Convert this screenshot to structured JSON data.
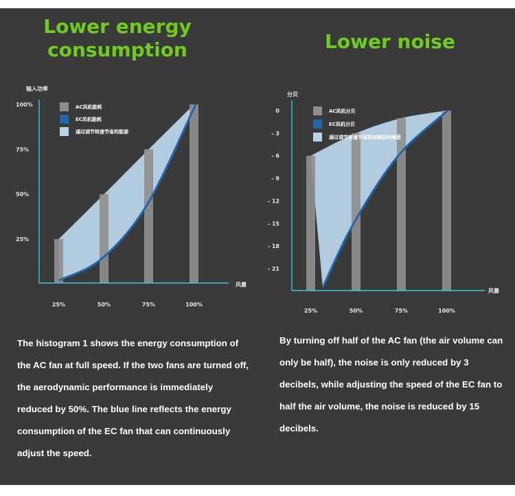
{
  "colors": {
    "background": "#3a3a3a",
    "title": "#6fcc1f",
    "axis": "#3ec9d6",
    "ac_bar": "#8f8f8f",
    "ec_line": "#2465a8",
    "saved_area": "#b9d3e7",
    "text": "#ffffff"
  },
  "left": {
    "title_line1": "Lower energy",
    "title_line2": "consumption",
    "description": "The histogram 1 shows the energy consumption of the AC fan at full speed. If the two fans are turned off, the aerodynamic performance is immediately reduced by 50%. The blue line reflects the energy consumption of the EC fan that can continuously adjust the speed."
  },
  "right": {
    "title": "Lower noise",
    "description": "By turning off half of the AC fan (the air volume can only be half), the noise is only reduced by 3 decibels, while adjusting the speed of the EC fan to half the air volume, the noise is reduced by 15 decibels."
  },
  "chart_data": [
    {
      "type": "bar",
      "title": "Lower energy consumption",
      "ylabel": "输入功率",
      "xlabel": "风量",
      "categories": [
        "25%",
        "50%",
        "75%",
        "100%"
      ],
      "y_tick_labels": [
        "100%",
        "75%",
        "50%",
        "25%"
      ],
      "y_ticks": [
        100,
        75,
        50,
        25
      ],
      "ylim": [
        0,
        100
      ],
      "legend": [
        "AC风机能耗",
        "EC风机能耗",
        "通过调节转速节省的能源"
      ],
      "series": [
        {
          "name": "AC风机能耗",
          "kind": "bar",
          "values": [
            25,
            50,
            75,
            100
          ]
        },
        {
          "name": "EC风机能耗",
          "kind": "line",
          "values": [
            2,
            14,
            44,
            100
          ]
        }
      ]
    },
    {
      "type": "bar",
      "title": "Lower noise",
      "ylabel": "分贝",
      "xlabel": "风量",
      "categories": [
        "25%",
        "50%",
        "75%",
        "100%"
      ],
      "y_tick_labels": [
        "0",
        "- 3",
        "- 6",
        "- 9",
        "- 12",
        "- 15",
        "- 18",
        "- 21"
      ],
      "y_ticks": [
        0,
        -3,
        -6,
        -9,
        -12,
        -15,
        -18,
        -21
      ],
      "ylim": [
        -23.5,
        0
      ],
      "legend": [
        "AC风机分贝",
        "EC风机分贝",
        "通过调节转速节省相对降低的噪音"
      ],
      "series": [
        {
          "name": "AC风机分贝",
          "kind": "bar",
          "values": [
            -6,
            -3,
            -1,
            0
          ]
        },
        {
          "name": "EC风机分贝",
          "kind": "line",
          "values": [
            -23.5,
            -15,
            -6,
            0
          ]
        }
      ]
    }
  ]
}
